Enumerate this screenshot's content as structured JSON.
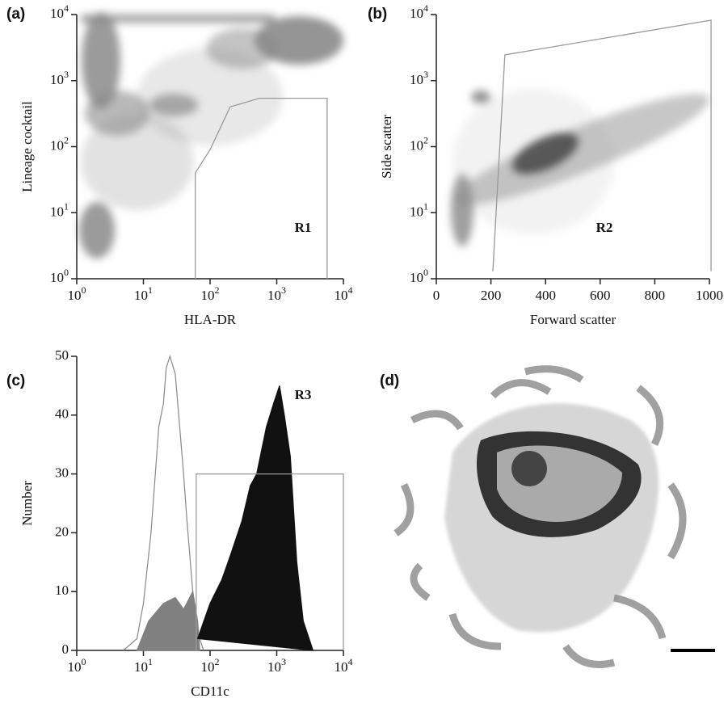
{
  "chart_data": [
    {
      "type": "scatter",
      "panel": "(a)",
      "xlabel": "HLA-DR",
      "ylabel": "Lineage cocktail",
      "xscale": "log",
      "yscale": "log",
      "xlim": [
        1,
        10000
      ],
      "ylim": [
        1,
        10000
      ],
      "xticks": [
        {
          "value": 1,
          "label": "10",
          "exponent": "0"
        },
        {
          "value": 10,
          "label": "10",
          "exponent": "1"
        },
        {
          "value": 100,
          "label": "10",
          "exponent": "2"
        },
        {
          "value": 1000,
          "label": "10",
          "exponent": "3"
        },
        {
          "value": 10000,
          "label": "10",
          "exponent": "4"
        }
      ],
      "yticks": [
        {
          "value": 1,
          "label": "10",
          "exponent": "0"
        },
        {
          "value": 10,
          "label": "10",
          "exponent": "1"
        },
        {
          "value": 100,
          "label": "10",
          "exponent": "2"
        },
        {
          "value": 1000,
          "label": "10",
          "exponent": "3"
        },
        {
          "value": 10000,
          "label": "10",
          "exponent": "4"
        }
      ],
      "gate": {
        "label": "R1",
        "x": [
          60,
          60,
          100,
          200,
          550,
          5700,
          5700
        ],
        "y": [
          1,
          40,
          90,
          400,
          540,
          540,
          1
        ]
      }
    },
    {
      "type": "scatter",
      "panel": "(b)",
      "xlabel": "Forward scatter",
      "ylabel": "Side scatter",
      "xscale": "linear",
      "yscale": "log",
      "xlim": [
        0,
        1000
      ],
      "ylim": [
        1,
        10000
      ],
      "xticks": [
        0,
        200,
        400,
        600,
        800,
        1000
      ],
      "yticks": [
        {
          "value": 1,
          "label": "10",
          "exponent": "0"
        },
        {
          "value": 10,
          "label": "10",
          "exponent": "1"
        },
        {
          "value": 100,
          "label": "10",
          "exponent": "2"
        },
        {
          "value": 1000,
          "label": "10",
          "exponent": "3"
        },
        {
          "value": 10000,
          "label": "10",
          "exponent": "4"
        }
      ],
      "gate": {
        "label": "R2",
        "x": [
          207,
          251,
          1006,
          1006
        ],
        "y": [
          1.3,
          2450,
          8200,
          1.3
        ]
      }
    },
    {
      "type": "area",
      "panel": "(c)",
      "xlabel": "CD11c",
      "ylabel": "Number",
      "xscale": "log",
      "yscale": "linear",
      "xlim": [
        1,
        10000
      ],
      "ylim": [
        0,
        50
      ],
      "xticks": [
        {
          "value": 1,
          "label": "10",
          "exponent": "0"
        },
        {
          "value": 10,
          "label": "10",
          "exponent": "1"
        },
        {
          "value": 100,
          "label": "10",
          "exponent": "2"
        },
        {
          "value": 1000,
          "label": "10",
          "exponent": "3"
        },
        {
          "value": 10000,
          "label": "10",
          "exponent": "4"
        }
      ],
      "yticks": [
        0,
        10,
        20,
        30,
        40,
        50
      ],
      "series": [
        {
          "color": "none",
          "stroke": "#888888",
          "x": [
            5,
            8,
            10,
            13,
            17,
            20,
            22,
            25,
            30,
            35,
            40,
            45,
            55,
            65,
            80
          ],
          "values": [
            0,
            2,
            8,
            20,
            38,
            42,
            48,
            50,
            47,
            38,
            30,
            22,
            10,
            3,
            0
          ]
        },
        {
          "color": "#808080",
          "stroke": "#808080",
          "x": [
            8,
            12,
            20,
            30,
            40,
            55,
            65,
            70
          ],
          "values": [
            0,
            5,
            8,
            9,
            7,
            10,
            5,
            0
          ]
        },
        {
          "color": "#111111",
          "stroke": "#111111",
          "x": [
            65,
            100,
            150,
            200,
            300,
            400,
            500,
            700,
            900,
            1100,
            1300,
            1600,
            2000,
            2500,
            3500
          ],
          "values": [
            2,
            8,
            12,
            16,
            22,
            28,
            30,
            38,
            42,
            45,
            40,
            33,
            15,
            5,
            0
          ]
        }
      ],
      "gate": {
        "label": "R3",
        "x": [
          62,
          62,
          10000,
          10000
        ],
        "y": [
          0,
          30,
          30,
          0
        ]
      }
    }
  ],
  "figure": {
    "panel": "(d)"
  }
}
